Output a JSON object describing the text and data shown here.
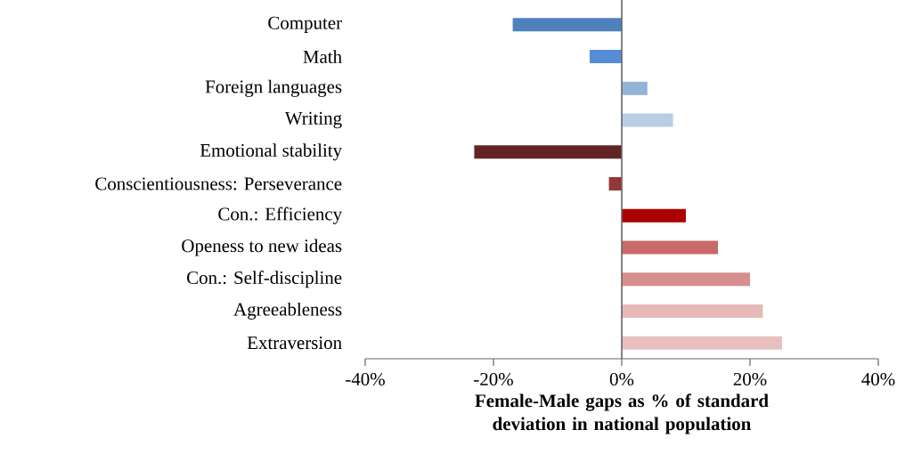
{
  "chart_data": {
    "type": "bar",
    "orientation": "horizontal",
    "categories": [
      "Computer",
      "Math",
      "Foreign languages",
      "Writing",
      "Emotional stability",
      "Conscientiousness: Perseverance",
      "Con.: Efficiency",
      "Openess to new ideas",
      "Con.: Self-discipline",
      "Agreeableness",
      "Extraversion"
    ],
    "values": [
      -17,
      -5,
      4,
      8,
      -23,
      -2,
      10,
      15,
      20,
      22,
      25
    ],
    "colors": [
      "#4f81bd",
      "#558ed5",
      "#95b3d7",
      "#b9cde5",
      "#632523",
      "#953735",
      "#ac0000",
      "#c96a69",
      "#d78f8e",
      "#e6b9b8",
      "#e9c0c0"
    ],
    "xlim": [
      -40,
      40
    ],
    "xticks": [
      {
        "value": -40,
        "label": "-40%"
      },
      {
        "value": -20,
        "label": "-20%"
      },
      {
        "value": 0,
        "label": "0%"
      },
      {
        "value": 20,
        "label": "20%"
      },
      {
        "value": 40,
        "label": "40%"
      }
    ],
    "xlabel": "Female-Male gaps as % of standard deviation in national population"
  }
}
